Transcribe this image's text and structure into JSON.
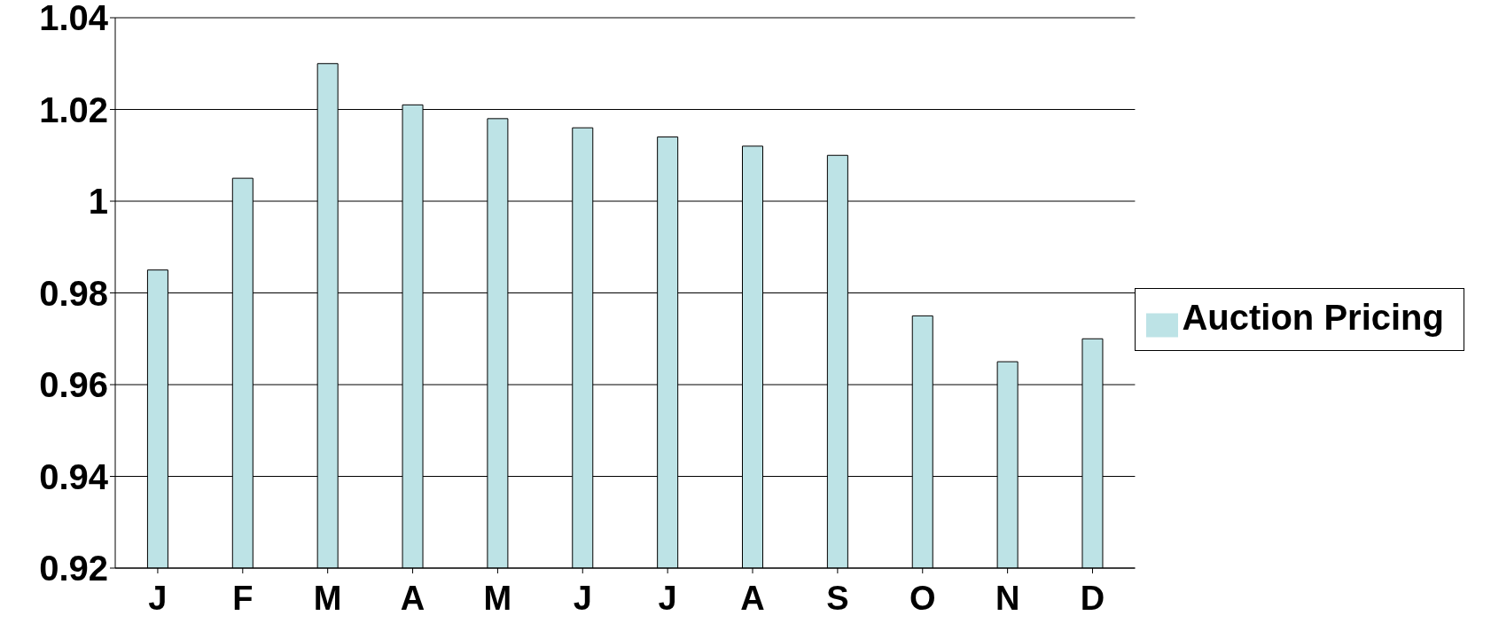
{
  "chart_data": {
    "type": "bar",
    "categories": [
      "J",
      "F",
      "M",
      "A",
      "M",
      "J",
      "J",
      "A",
      "S",
      "O",
      "N",
      "D"
    ],
    "series": [
      {
        "name": "Auction Pricing",
        "color": "#bde3e6",
        "values": [
          0.985,
          1.005,
          1.03,
          1.021,
          1.018,
          1.016,
          1.014,
          1.012,
          1.01,
          0.975,
          0.965,
          0.97
        ]
      }
    ],
    "ylim": [
      0.92,
      1.04
    ],
    "yticks": [
      0.92,
      0.94,
      0.96,
      0.98,
      1,
      1.02,
      1.04
    ],
    "grid": "y",
    "legend": "right"
  }
}
